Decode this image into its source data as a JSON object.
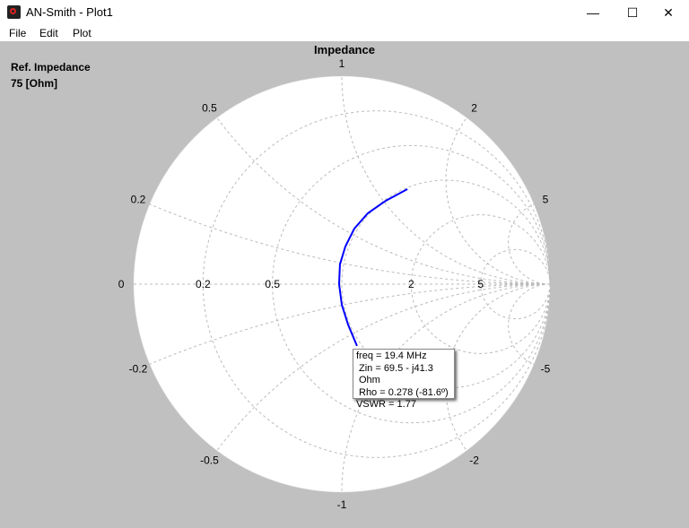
{
  "window": {
    "title": "AN-Smith - Plot1",
    "minimize": "—",
    "maximize": "☐",
    "close": "✕"
  },
  "menu": [
    "File",
    "Edit",
    "Plot"
  ],
  "ref": {
    "label": "Ref. Impedance",
    "value": "75 [Ohm]"
  },
  "chart_data": {
    "type": "smith",
    "title": "Impedance",
    "resistance_circles": [
      0.2,
      0.5,
      1,
      2,
      5
    ],
    "reactance_arcs": [
      0.2,
      0.5,
      1,
      2,
      5,
      -0.2,
      -0.5,
      -1,
      -2,
      -5
    ],
    "r_labels": [
      "0.2",
      "0.5",
      "2",
      "5"
    ],
    "x_labels": [
      {
        "x": 0,
        "t": "0"
      },
      {
        "x": 0.2,
        "t": "0.2"
      },
      {
        "x": 0.5,
        "t": "0.5"
      },
      {
        "x": 1,
        "t": "1"
      },
      {
        "x": 2,
        "t": "2"
      },
      {
        "x": 5,
        "t": "5"
      },
      {
        "x": -0.2,
        "t": "-0.2"
      },
      {
        "x": -0.5,
        "t": "-0.5"
      },
      {
        "x": -1,
        "t": "-1"
      },
      {
        "x": -2,
        "t": "-2"
      },
      {
        "x": -5,
        "t": "-5"
      }
    ],
    "trace_gamma": [
      [
        0.315,
        0.457
      ],
      [
        0.211,
        0.401
      ],
      [
        0.125,
        0.341
      ],
      [
        0.06,
        0.267
      ],
      [
        0.017,
        0.181
      ],
      [
        -0.009,
        0.095
      ],
      [
        -0.013,
        0
      ],
      [
        0,
        -0.099
      ],
      [
        0.03,
        -0.194
      ],
      [
        0.073,
        -0.297
      ]
    ],
    "trace_color": "#0000ff",
    "marker": {
      "freq": "freq = 19.4 MHz",
      "zin": "Zin = 69.5 - j41.3 Ohm",
      "rho": "Rho = 0.278 (-81.6º)",
      "vswr": "VSWR = 1.77"
    }
  }
}
